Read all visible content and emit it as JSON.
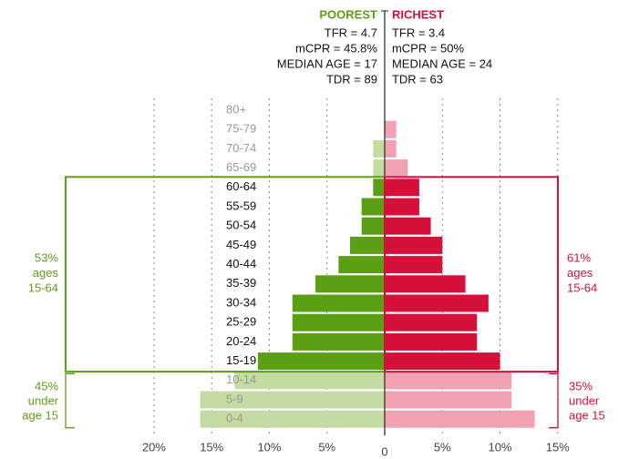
{
  "chart_data": {
    "type": "pyramid",
    "categories": [
      "80+",
      "75-79",
      "70-74",
      "65-69",
      "60-64",
      "55-59",
      "50-54",
      "45-49",
      "40-44",
      "35-39",
      "30-34",
      "25-29",
      "20-24",
      "15-19",
      "10-14",
      "5-9",
      "0-4"
    ],
    "series": [
      {
        "name": "POOREST",
        "side": "left",
        "color": "#5c9e14",
        "light_color": "#c4dca2",
        "stats": [
          "TFR = 4.7",
          "mCPR = 45.8%",
          "MEDIAN AGE = 17",
          "TDR = 89"
        ],
        "values": [
          0,
          0,
          1,
          1,
          1,
          2,
          2,
          3,
          4,
          6,
          8,
          8,
          8,
          11,
          13,
          16,
          16
        ],
        "colors": [
          "#c4dca2",
          "#c4dca2",
          "#c4dca2",
          "#c4dca2",
          "#5c9e14",
          "#5c9e14",
          "#5c9e14",
          "#5c9e14",
          "#5c9e14",
          "#5c9e14",
          "#5c9e14",
          "#5c9e14",
          "#5c9e14",
          "#5c9e14",
          "#c4dca2",
          "#c4dca2",
          "#c4dca2"
        ],
        "box_label": [
          "53%",
          "ages",
          "15-64"
        ],
        "bracket_label": [
          "45%",
          "under",
          "age 15"
        ]
      },
      {
        "name": "RICHEST",
        "side": "right",
        "color": "#d5103b",
        "light_color": "#f1a1b2",
        "stats": [
          "TFR = 3.4",
          "mCPR = 50%",
          "MEDIAN AGE = 24",
          "TDR = 63"
        ],
        "values": [
          0,
          1,
          1,
          2,
          3,
          3,
          4,
          5,
          5,
          7,
          9,
          8,
          8,
          10,
          11,
          11,
          13
        ],
        "colors": [
          "#f1a1b2",
          "#f1a1b2",
          "#f1a1b2",
          "#f1a1b2",
          "#d5103b",
          "#d5103b",
          "#d5103b",
          "#d5103b",
          "#d5103b",
          "#d5103b",
          "#d5103b",
          "#d5103b",
          "#d5103b",
          "#d5103b",
          "#f1a1b2",
          "#f1a1b2",
          "#f1a1b2"
        ],
        "box_label": [
          "61%",
          "ages",
          "15-64"
        ],
        "bracket_label": [
          "35%",
          "under",
          "age 15"
        ]
      }
    ],
    "xlim": [
      -22.25,
      15.7
    ],
    "xticks": [
      {
        "value": -20,
        "label": "20%"
      },
      {
        "value": -15,
        "label": "15%"
      },
      {
        "value": -10,
        "label": "10%"
      },
      {
        "value": -5,
        "label": "5%"
      },
      0,
      {
        "value": 5,
        "label": "5%"
      },
      {
        "value": 10,
        "label": "10%"
      },
      {
        "value": 15,
        "label": "15%"
      }
    ],
    "grid": true
  }
}
